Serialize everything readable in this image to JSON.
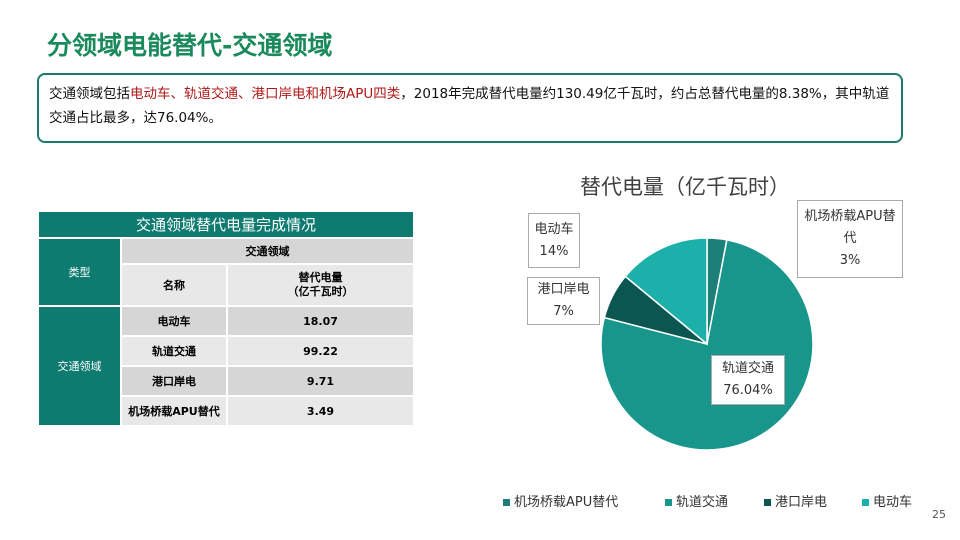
{
  "header": {
    "title": "分领域电能替代-交通领域"
  },
  "intro": [
    "交通领域包括",
    "电动车、轨道交通、港口岸电和机场APU四类",
    "，2018年完成替代电量约130.49亿千瓦时，约占总替代电量的8.38%，其中轨道交通占比最多，达76.04%。"
  ],
  "table": {
    "title": "交通领域替代电量完成情况",
    "type_header": "类型",
    "group_header": "交通领域",
    "name_header": "名称",
    "value_header": "替代电量\n（亿千瓦时）",
    "group": "交通领域",
    "rows": [
      [
        "电动车",
        18.07
      ],
      [
        "轨道交通",
        99.22
      ],
      [
        "港口岸电",
        9.71
      ],
      [
        "机场桥载APU替代",
        3.49
      ]
    ]
  },
  "chart_data": {
    "type": "pie",
    "title": "替代电量（亿千瓦时）",
    "categories": [
      "机场桥载APU替代",
      "轨道交通",
      "港口岸电",
      "电动车"
    ],
    "values": [
      3,
      76.04,
      7,
      14
    ],
    "value_labels": [
      "3%",
      "76.04%",
      "7%",
      "14%"
    ],
    "colors": [
      "#1c8078",
      "#18968c",
      "#0c5652",
      "#1db0aa"
    ],
    "legend": "bottom"
  },
  "page_number": "25"
}
